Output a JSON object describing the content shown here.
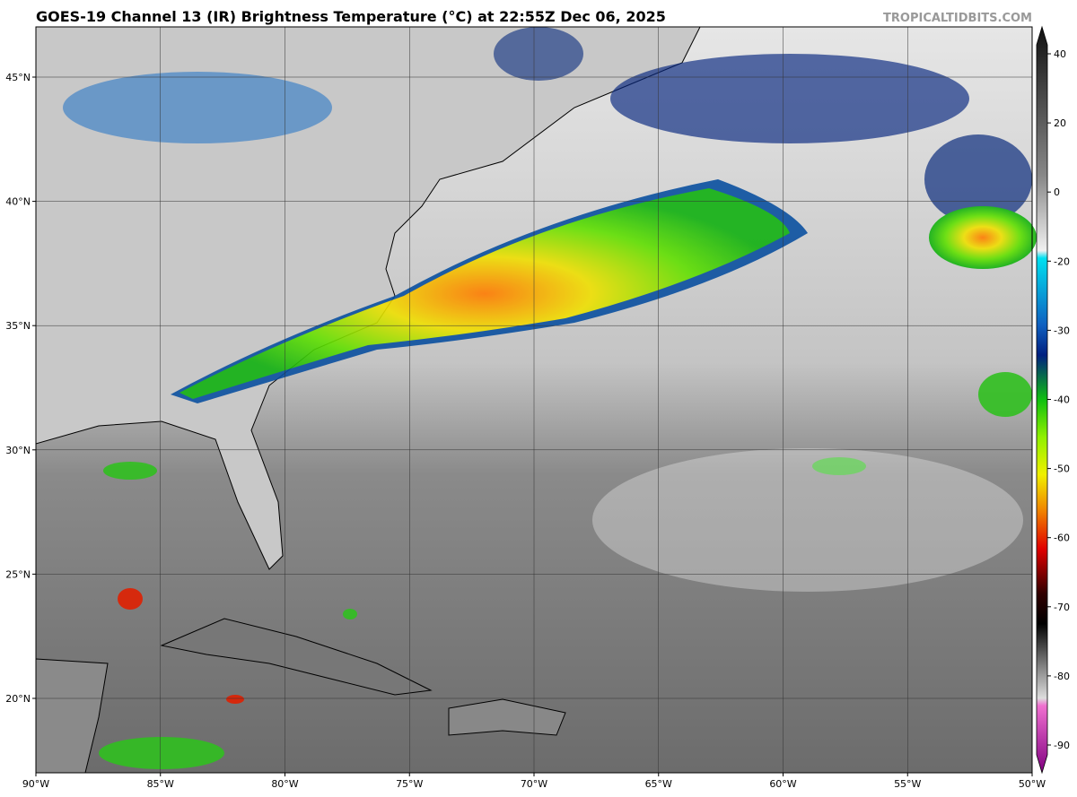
{
  "header": {
    "title": "GOES-19 Channel 13 (IR) Brightness Temperature (°C) at 22:55Z Dec 06, 2025",
    "credit": "TROPICALTIDBITS.COM"
  },
  "map": {
    "lat_labels": [
      "45°N",
      "40°N",
      "35°N",
      "30°N",
      "25°N",
      "20°N"
    ],
    "lon_labels": [
      "90°W",
      "85°W",
      "80°W",
      "75°W",
      "70°W",
      "65°W",
      "60°W",
      "55°W",
      "50°W"
    ]
  },
  "colorbar": {
    "ticks": [
      "40",
      "20",
      "0",
      "-20",
      "-30",
      "-40",
      "-50",
      "-60",
      "-70",
      "-80",
      "-90"
    ]
  }
}
